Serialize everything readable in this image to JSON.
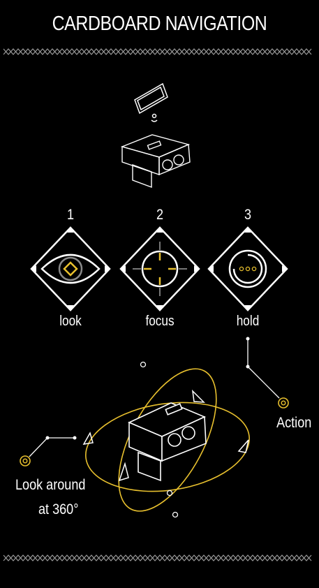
{
  "title": "CARDBOARD NAVIGATION",
  "colors": {
    "background": "#000000",
    "line": "#ffffff",
    "accent": "#e8c02e",
    "muted": "#777777"
  },
  "steps": [
    {
      "number": "1",
      "label": "look",
      "icon": "eye-icon"
    },
    {
      "number": "2",
      "label": "focus",
      "icon": "crosshair-icon"
    },
    {
      "number": "3",
      "label": "hold",
      "icon": "loading-ring-icon"
    }
  ],
  "action_label": "Action",
  "look_around": {
    "line1": "Look around",
    "line2": "at 360°"
  }
}
